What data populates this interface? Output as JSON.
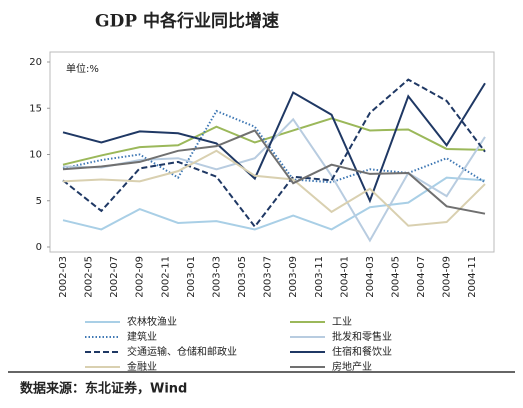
{
  "chart_data": {
    "type": "line",
    "title": "GDP 中各行业同比增速",
    "annotation": "单位:%",
    "source": "数据来源：东北证券，Wind",
    "x": [
      "2002-03",
      "2002-06",
      "2002-09",
      "2002-12",
      "2003-03",
      "2003-06",
      "2003-09",
      "2003-12",
      "2004-03",
      "2004-06",
      "2004-09",
      "2004-12"
    ],
    "xticks": [
      "2002-03",
      "2002-05",
      "2002-07",
      "2002-09",
      "2002-11",
      "2003-01",
      "2003-03",
      "2003-05",
      "2003-07",
      "2003-09",
      "2003-11",
      "2004-01",
      "2004-03",
      "2004-05",
      "2004-07",
      "2004-09",
      "2004-11"
    ],
    "xlim": [
      "2002-03",
      "2004-12"
    ],
    "ylim": [
      0,
      20
    ],
    "yticks": [
      0,
      5,
      10,
      15,
      20
    ],
    "series": [
      {
        "name": "农林牧渔业",
        "color": "#a9cfe6",
        "style": "solid",
        "values": [
          2.9,
          1.9,
          4.1,
          2.6,
          2.8,
          1.9,
          3.4,
          1.9,
          4.3,
          4.8,
          7.5,
          7.2
        ]
      },
      {
        "name": "工业",
        "color": "#9bb85a",
        "style": "solid",
        "values": [
          8.9,
          9.9,
          10.8,
          11.0,
          13.0,
          11.3,
          12.6,
          13.9,
          12.6,
          12.7,
          10.6,
          10.5
        ]
      },
      {
        "name": "建筑业",
        "color": "#3f78b4",
        "style": "dotted",
        "values": [
          8.5,
          9.4,
          10.0,
          7.5,
          14.7,
          13.0,
          7.3,
          7.0,
          8.4,
          8.0,
          9.6,
          7.0
        ]
      },
      {
        "name": "批发和零售业",
        "color": "#b8cce0",
        "style": "solid",
        "values": [
          8.7,
          8.6,
          9.4,
          9.6,
          8.4,
          9.6,
          13.8,
          7.7,
          0.7,
          8.0,
          5.5,
          11.9
        ]
      },
      {
        "name": "交通运输、仓储和邮政业",
        "color": "#1f3864",
        "style": "dashed",
        "values": [
          7.2,
          3.9,
          8.5,
          9.2,
          7.6,
          2.2,
          7.6,
          7.2,
          14.5,
          18.1,
          15.8,
          10.3
        ]
      },
      {
        "name": "住宿和餐饮业",
        "color": "#1f3864",
        "style": "solid",
        "values": [
          12.4,
          11.3,
          12.5,
          12.3,
          11.2,
          7.4,
          16.7,
          14.3,
          5.0,
          16.3,
          11.0,
          17.7
        ]
      },
      {
        "name": "金融业",
        "color": "#d9d0b0",
        "style": "solid",
        "values": [
          7.1,
          7.3,
          7.1,
          8.2,
          10.4,
          7.7,
          7.3,
          3.8,
          6.3,
          2.3,
          2.7,
          6.8
        ]
      },
      {
        "name": "房地产业",
        "color": "#707070",
        "style": "solid",
        "values": [
          8.4,
          8.7,
          9.2,
          10.4,
          10.9,
          12.6,
          6.9,
          8.9,
          7.9,
          8.0,
          4.4,
          3.6
        ]
      }
    ]
  }
}
